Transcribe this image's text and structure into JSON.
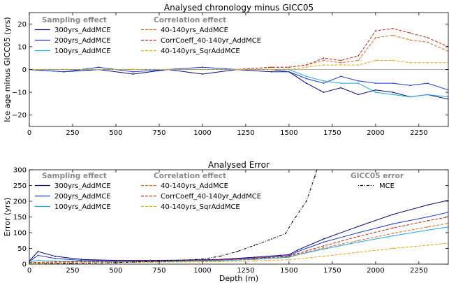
{
  "chart_data": [
    {
      "type": "line",
      "title": "Analysed chronology minus GICC05",
      "xlabel": "",
      "ylabel": "Ice age minus GICC05 (yrs)",
      "xlim": [
        0,
        2420
      ],
      "ylim": [
        -25,
        25
      ],
      "xticks": [
        "0",
        "250",
        "500",
        "750",
        "1000",
        "1250",
        "1500",
        "1750",
        "2000",
        "2250"
      ],
      "yticks": [
        "20",
        "10",
        "0",
        "−10",
        "−20"
      ],
      "legend_groups": [
        {
          "heading": "Sampling effect",
          "entries": [
            {
              "label": "300yrs_AddMCE",
              "color": "#0a0a78",
              "dash": "solid"
            },
            {
              "label": "200yrs_AddMCE",
              "color": "#1c3ad8",
              "dash": "solid"
            },
            {
              "label": "100yrs_AddMCE",
              "color": "#19a8f0",
              "dash": "solid"
            }
          ]
        },
        {
          "heading": "Correlation effect",
          "entries": [
            {
              "label": "40-140yrs_AddMCE",
              "color": "#e4661c",
              "dash": "dashed"
            },
            {
              "label": "CorrCoeff_40-140yr_AddMCE",
              "color": "#c82818",
              "dash": "dashed"
            },
            {
              "label": "40-140yrs_SqrAddMCE",
              "color": "#f5a30a",
              "dash": "dashed"
            }
          ]
        }
      ],
      "series": [
        {
          "name": "300yrs_AddMCE",
          "color": "#0a0a78",
          "dash": "solid",
          "x": [
            0,
            200,
            400,
            600,
            800,
            1000,
            1200,
            1400,
            1500,
            1600,
            1700,
            1800,
            1900,
            2000,
            2100,
            2200,
            2300,
            2420
          ],
          "y": [
            0,
            -1,
            0,
            -2,
            0,
            -2,
            0,
            -1,
            -1,
            -6,
            -10,
            -8,
            -11,
            -9,
            -10,
            -12,
            -11,
            -13
          ]
        },
        {
          "name": "200yrs_AddMCE",
          "color": "#1c3ad8",
          "dash": "solid",
          "x": [
            0,
            200,
            400,
            600,
            800,
            1000,
            1200,
            1400,
            1500,
            1600,
            1700,
            1800,
            1900,
            2000,
            2100,
            2200,
            2300,
            2420
          ],
          "y": [
            0,
            -1,
            1,
            -1,
            0,
            1,
            0,
            0,
            -1,
            -4,
            -6,
            -3,
            -5,
            -6,
            -6,
            -7,
            -6,
            -9
          ]
        },
        {
          "name": "100yrs_AddMCE",
          "color": "#19a8f0",
          "dash": "solid",
          "x": [
            0,
            200,
            400,
            600,
            800,
            1000,
            1200,
            1400,
            1500,
            1600,
            1700,
            1800,
            1900,
            2000,
            2100,
            2200,
            2300,
            2420
          ],
          "y": [
            0,
            0,
            0,
            0,
            0,
            0,
            0,
            0,
            0,
            -3,
            -5,
            -6,
            -6,
            -10,
            -11,
            -12,
            -11,
            -12
          ]
        },
        {
          "name": "40-140yrs_AddMCE",
          "color": "#e4661c",
          "dash": "dashed",
          "x": [
            0,
            200,
            400,
            600,
            800,
            1000,
            1200,
            1400,
            1500,
            1600,
            1700,
            1800,
            1900,
            2000,
            2100,
            2200,
            2300,
            2420
          ],
          "y": [
            0,
            0,
            0,
            0,
            0,
            0,
            0,
            1,
            1,
            2,
            4,
            3,
            4,
            14,
            15,
            13,
            12,
            8
          ]
        },
        {
          "name": "CorrCoeff_40-140yr_AddMCE",
          "color": "#c82818",
          "dash": "dashed",
          "x": [
            0,
            200,
            400,
            600,
            800,
            1000,
            1200,
            1400,
            1500,
            1600,
            1700,
            1800,
            1900,
            2000,
            2100,
            2200,
            2300,
            2420
          ],
          "y": [
            0,
            0,
            0,
            0,
            0,
            0,
            0,
            1,
            1,
            2,
            5,
            4,
            6,
            17,
            18,
            16,
            14,
            10
          ]
        },
        {
          "name": "40-140yrs_SqrAddMCE",
          "color": "#f5a30a",
          "dash": "dashed",
          "x": [
            0,
            200,
            400,
            600,
            800,
            1000,
            1200,
            1400,
            1500,
            1600,
            1700,
            1800,
            1900,
            2000,
            2100,
            2200,
            2300,
            2420
          ],
          "y": [
            0,
            0,
            0,
            0,
            0,
            0,
            0,
            0,
            0,
            1,
            2,
            2,
            2,
            4,
            4,
            3,
            3,
            3
          ]
        }
      ]
    },
    {
      "type": "line",
      "title": "Analysed Error",
      "xlabel": "Depth (m)",
      "ylabel": "Error (yrs)",
      "xlim": [
        0,
        2420
      ],
      "ylim": [
        0,
        300
      ],
      "xticks": [
        "0",
        "250",
        "500",
        "750",
        "1000",
        "1250",
        "1500",
        "1750",
        "2000",
        "2250"
      ],
      "yticks": [
        "300",
        "250",
        "200",
        "150",
        "100",
        "50",
        "0"
      ],
      "legend_groups": [
        {
          "heading": "Sampling effect",
          "entries": [
            {
              "label": "300yrs_AddMCE",
              "color": "#0a0a78",
              "dash": "solid"
            },
            {
              "label": "200yrs_AddMCE",
              "color": "#1c3ad8",
              "dash": "solid"
            },
            {
              "label": "100yrs_AddMCE",
              "color": "#19a8f0",
              "dash": "solid"
            }
          ]
        },
        {
          "heading": "Correlation effect",
          "entries": [
            {
              "label": "40-140yrs_AddMCE",
              "color": "#e4661c",
              "dash": "dashed"
            },
            {
              "label": "CorrCoeff_40-140yr_AddMCE",
              "color": "#c82818",
              "dash": "dashed"
            },
            {
              "label": "40-140yrs_SqrAddMCE",
              "color": "#f5a30a",
              "dash": "dashed"
            }
          ]
        },
        {
          "heading": "GICC05 error",
          "entries": [
            {
              "label": "MCE",
              "color": "#000000",
              "dash": "dashdot"
            }
          ]
        }
      ],
      "series": [
        {
          "name": "300yrs_AddMCE",
          "color": "#0a0a78",
          "dash": "solid",
          "x": [
            0,
            50,
            150,
            300,
            500,
            700,
            900,
            1100,
            1300,
            1450,
            1500,
            1550,
            1700,
            1900,
            2100,
            2300,
            2420
          ],
          "y": [
            10,
            40,
            25,
            15,
            12,
            12,
            13,
            15,
            22,
            28,
            30,
            45,
            80,
            120,
            158,
            188,
            203
          ]
        },
        {
          "name": "200yrs_AddMCE",
          "color": "#1c3ad8",
          "dash": "solid",
          "x": [
            0,
            50,
            150,
            300,
            500,
            700,
            900,
            1100,
            1300,
            1450,
            1500,
            1550,
            1700,
            1900,
            2100,
            2300,
            2420
          ],
          "y": [
            8,
            28,
            18,
            12,
            10,
            10,
            11,
            13,
            19,
            25,
            27,
            40,
            70,
            100,
            128,
            150,
            165
          ]
        },
        {
          "name": "100yrs_AddMCE",
          "color": "#19a8f0",
          "dash": "solid",
          "x": [
            0,
            50,
            150,
            300,
            500,
            700,
            900,
            1100,
            1300,
            1450,
            1500,
            1550,
            1700,
            1900,
            2100,
            2300,
            2420
          ],
          "y": [
            6,
            12,
            9,
            8,
            8,
            8,
            9,
            11,
            15,
            20,
            22,
            30,
            48,
            70,
            90,
            108,
            118
          ]
        },
        {
          "name": "40-140yrs_AddMCE",
          "color": "#e4661c",
          "dash": "dashed",
          "x": [
            0,
            150,
            300,
            500,
            700,
            900,
            1100,
            1300,
            1500,
            1700,
            1900,
            2100,
            2300,
            2420
          ],
          "y": [
            5,
            7,
            8,
            9,
            10,
            11,
            13,
            17,
            24,
            52,
            75,
            98,
            118,
            130
          ]
        },
        {
          "name": "CorrCoeff_40-140yr_AddMCE",
          "color": "#c82818",
          "dash": "dashed",
          "x": [
            0,
            150,
            300,
            500,
            700,
            900,
            1100,
            1300,
            1500,
            1700,
            1900,
            2100,
            2300,
            2420
          ],
          "y": [
            5,
            7,
            8,
            9,
            10,
            12,
            14,
            18,
            26,
            58,
            88,
            115,
            138,
            150
          ]
        },
        {
          "name": "40-140yrs_SqrAddMCE",
          "color": "#f5a30a",
          "dash": "dashed",
          "x": [
            0,
            150,
            300,
            500,
            700,
            900,
            1100,
            1300,
            1500,
            1700,
            1900,
            2100,
            2300,
            2420
          ],
          "y": [
            3,
            4,
            5,
            5,
            6,
            7,
            8,
            10,
            14,
            25,
            38,
            50,
            60,
            67
          ]
        },
        {
          "name": "MCE",
          "color": "#000000",
          "dash": "dashdot",
          "x": [
            0,
            500,
            800,
            1000,
            1100,
            1200,
            1300,
            1400,
            1480,
            1520,
            1600,
            1650,
            1660
          ],
          "y": [
            0,
            5,
            10,
            16,
            25,
            40,
            60,
            80,
            97,
            135,
            200,
            280,
            300
          ]
        }
      ]
    }
  ]
}
